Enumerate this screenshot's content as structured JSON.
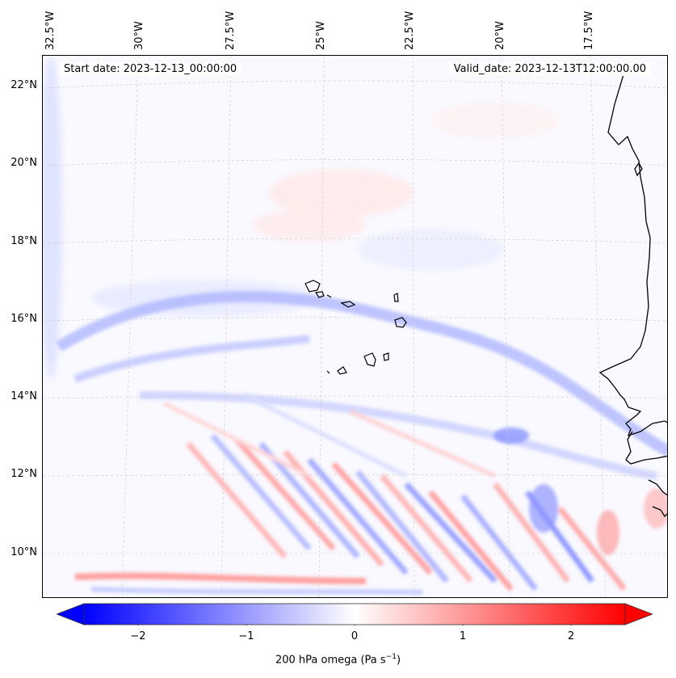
{
  "map": {
    "start_date": "Start date: 2023-12-13_00:00:00",
    "valid_date": "Valid_date: 2023-12-13T12:00:00.00",
    "lon_labels": [
      "32.5°W",
      "30°W",
      "27.5°W",
      "25°W",
      "22.5°W",
      "20°W",
      "17.5°W"
    ],
    "lat_labels": [
      "22°N",
      "20°N",
      "18°N",
      "16°N",
      "14°N",
      "12°N",
      "10°N"
    ],
    "lon_values": [
      -32.5,
      -30,
      -27.5,
      -25,
      -22.5,
      -20,
      -17.5
    ],
    "lat_values": [
      22,
      20,
      18,
      16,
      14,
      12,
      10
    ],
    "extent": {
      "lon_min": -33.0,
      "lon_max": -15.7,
      "lat_min": 8.9,
      "lat_max": 22.7
    },
    "features": [
      "Cape Verde islands",
      "West African coastline"
    ],
    "colors": {
      "negative": "#0000ff",
      "zero": "#ffffff",
      "positive": "#ff0000",
      "coast": "#000000"
    }
  },
  "colorbar": {
    "label_text": "200 hPa omega (Pa s",
    "label_sup": "−1",
    "label_close": ")",
    "ticks": [
      "−2",
      "−1",
      "0",
      "1",
      "2"
    ],
    "tick_values": [
      -2,
      -1,
      0,
      1,
      2
    ],
    "range": [
      -2.5,
      2.5
    ],
    "extend": "both"
  }
}
